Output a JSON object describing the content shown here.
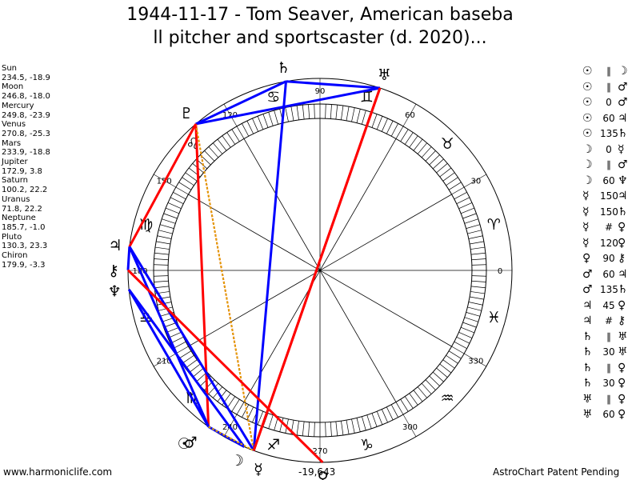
{
  "title": {
    "line1": "1944-11-17 - Tom Seaver, American baseba",
    "line2": "ll pitcher and sportscaster (d. 2020)..."
  },
  "planets": [
    {
      "name": "Sun",
      "values": "234.5, -18.9",
      "glyph": "☉",
      "longitude": 234.5
    },
    {
      "name": "Moon",
      "values": "246.8, -18.0",
      "glyph": "☽",
      "longitude": 246.8
    },
    {
      "name": "Mercury",
      "values": "249.8, -23.9",
      "glyph": "☿",
      "longitude": 249.8
    },
    {
      "name": "Venus",
      "values": "270.8, -25.3",
      "glyph": "♀",
      "longitude": 270.8
    },
    {
      "name": "Mars",
      "values": "233.9, -18.8",
      "glyph": "♂",
      "longitude": 233.9
    },
    {
      "name": "Jupiter",
      "values": "172.9, 3.8",
      "glyph": "♃",
      "longitude": 172.9
    },
    {
      "name": "Saturn",
      "values": "100.2, 22.2",
      "glyph": "♄",
      "longitude": 100.2
    },
    {
      "name": "Uranus",
      "values": "71.8, 22.2",
      "glyph": "♅",
      "longitude": 71.8
    },
    {
      "name": "Neptune",
      "values": "185.7, -1.0",
      "glyph": "♆",
      "longitude": 185.7
    },
    {
      "name": "Pluto",
      "values": "130.3, 23.3",
      "glyph": "♇",
      "longitude": 130.3
    },
    {
      "name": "Chiron",
      "values": "179.9, -3.3",
      "glyph": "⚷",
      "longitude": 179.9
    }
  ],
  "aspects": [
    {
      "a": "☉",
      "symbol": "∥",
      "b": "☽"
    },
    {
      "a": "☉",
      "symbol": "∥",
      "b": "♂"
    },
    {
      "a": "☉",
      "symbol": "0",
      "b": "♂"
    },
    {
      "a": "☉",
      "symbol": "60",
      "b": "♃"
    },
    {
      "a": "☉",
      "symbol": "135",
      "b": "♄"
    },
    {
      "a": "☽",
      "symbol": "0",
      "b": "☿"
    },
    {
      "a": "☽",
      "symbol": "∥",
      "b": "♂"
    },
    {
      "a": "☽",
      "symbol": "60",
      "b": "♆"
    },
    {
      "a": "☿",
      "symbol": "150",
      "b": "♃"
    },
    {
      "a": "☿",
      "symbol": "150",
      "b": "♄"
    },
    {
      "a": "☿",
      "symbol": "#",
      "b": "♀"
    },
    {
      "a": "☿",
      "symbol": "120",
      "b": "♀"
    },
    {
      "a": "♀",
      "symbol": "90",
      "b": "⚷"
    },
    {
      "a": "♂",
      "symbol": "60",
      "b": "♃"
    },
    {
      "a": "♂",
      "symbol": "135",
      "b": "♄"
    },
    {
      "a": "♃",
      "symbol": "45",
      "b": "♀"
    },
    {
      "a": "♃",
      "symbol": "#",
      "b": "⚷"
    },
    {
      "a": "♄",
      "symbol": "∥",
      "b": "♅"
    },
    {
      "a": "♄",
      "symbol": "30",
      "b": "♅"
    },
    {
      "a": "♄",
      "symbol": "∥",
      "b": "♀"
    },
    {
      "a": "♄",
      "symbol": "30",
      "b": "♀"
    },
    {
      "a": "♅",
      "symbol": "∥",
      "b": "♀"
    },
    {
      "a": "♅",
      "symbol": "60",
      "b": "♀"
    }
  ],
  "degree_labels": [
    "0",
    "30",
    "60",
    "90",
    "120",
    "150",
    "180",
    "210",
    "240",
    "270",
    "300",
    "330"
  ],
  "zodiac_signs": [
    "♈",
    "♉",
    "♊",
    "♋",
    "♌",
    "♍",
    "♎",
    "♏",
    "♐",
    "♑",
    "♒",
    "♓"
  ],
  "aspect_lines": [
    {
      "from": 100.2,
      "to": 71.8,
      "color": "#0000ff"
    },
    {
      "from": 100.2,
      "to": 130.3,
      "color": "#0000ff"
    },
    {
      "from": 100.2,
      "to": 249.8,
      "color": "#0000ff"
    },
    {
      "from": 71.8,
      "to": 130.3,
      "color": "#0000ff"
    },
    {
      "from": 71.8,
      "to": 249.8,
      "color": "#ff0000"
    },
    {
      "from": 130.3,
      "to": 234.5,
      "color": "#ff0000"
    },
    {
      "from": 130.3,
      "to": 249.8,
      "color": "#ff0000",
      "dashed": true
    },
    {
      "from": 130.3,
      "to": 249.8,
      "color": "#e0a000",
      "dashed": true
    },
    {
      "from": 172.9,
      "to": 130.3,
      "color": "#ff0000"
    },
    {
      "from": 172.9,
      "to": 179.9,
      "color": "#0000ff"
    },
    {
      "from": 172.9,
      "to": 234.5,
      "color": "#0000ff"
    },
    {
      "from": 172.9,
      "to": 249.8,
      "color": "#0000ff"
    },
    {
      "from": 179.9,
      "to": 270.8,
      "color": "#ff0000"
    },
    {
      "from": 185.7,
      "to": 246.8,
      "color": "#0000ff"
    },
    {
      "from": 185.7,
      "to": 234.5,
      "color": "#0000ff"
    },
    {
      "from": 234.5,
      "to": 246.8,
      "color": "#0000ff"
    },
    {
      "from": 234.5,
      "to": 249.8,
      "color": "#e0a000",
      "dashed": true
    },
    {
      "from": 249.8,
      "to": 71.8,
      "color": "#ff0000"
    }
  ],
  "footer": {
    "left": "www.harmoniclife.com",
    "center": "-19,643",
    "right": "AstroChart Patent Pending"
  }
}
